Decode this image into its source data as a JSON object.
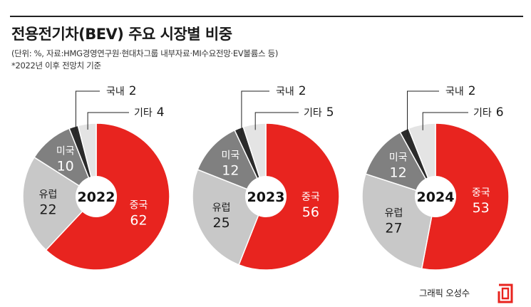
{
  "header": {
    "title": "전용전기차(BEV) 주요 시장별 비중",
    "note1": "(단위: %, 자료:HMG경영연구원·현대차그룹 내부자료·MI수요전망·EV볼륨스 등)",
    "note2": "*2022년 이후 전망치 기준"
  },
  "footer": {
    "credit": "그래픽 오성수"
  },
  "colors": {
    "china": "#e8241f",
    "europe": "#c8c8c8",
    "usa": "#808080",
    "korea": "#2b2b2b",
    "others": "#e4e4e4",
    "center": "#ffffff"
  },
  "chart_data": [
    {
      "type": "pie",
      "center_label": "2022",
      "slices": [
        {
          "name": "중국",
          "value": 62
        },
        {
          "name": "유럽",
          "value": 22
        },
        {
          "name": "미국",
          "value": 10
        },
        {
          "name": "국내",
          "value": 2
        },
        {
          "name": "기타",
          "value": 4
        }
      ]
    },
    {
      "type": "pie",
      "center_label": "2023",
      "slices": [
        {
          "name": "중국",
          "value": 56
        },
        {
          "name": "유럽",
          "value": 25
        },
        {
          "name": "미국",
          "value": 12
        },
        {
          "name": "국내",
          "value": 2
        },
        {
          "name": "기타",
          "value": 5
        }
      ]
    },
    {
      "type": "pie",
      "center_label": "2024",
      "slices": [
        {
          "name": "중국",
          "value": 53
        },
        {
          "name": "유럽",
          "value": 27
        },
        {
          "name": "미국",
          "value": 12
        },
        {
          "name": "국내",
          "value": 2
        },
        {
          "name": "기타",
          "value": 6
        }
      ]
    }
  ]
}
